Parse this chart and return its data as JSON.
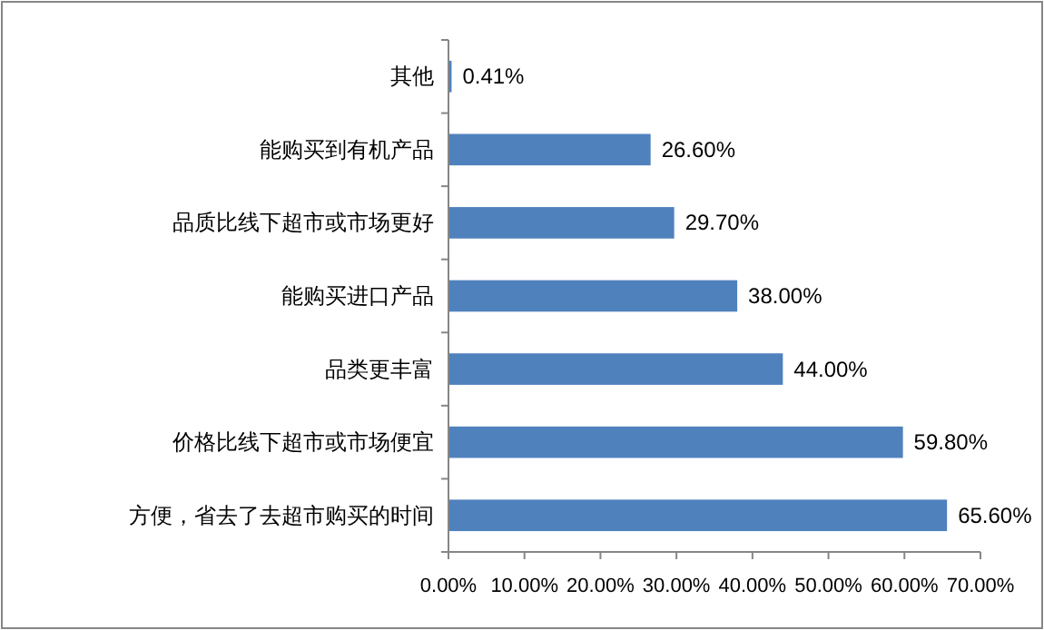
{
  "chart_data": {
    "type": "bar",
    "orientation": "horizontal",
    "categories": [
      "其他",
      "能购买到有机产品",
      "品质比线下超市或市场更好",
      "能购买进口产品",
      "品类更丰富",
      "价格比线下超市或市场便宜",
      "方便，省去了去超市购买的时间"
    ],
    "values": [
      0.41,
      26.6,
      29.7,
      38,
      44,
      59.8,
      65.6
    ],
    "value_labels": [
      "0.41%",
      "26.60%",
      "29.70%",
      "38.00%",
      "44.00%",
      "59.80%",
      "65.60%"
    ],
    "color": "#4f81bd",
    "xlim": [
      0,
      70
    ],
    "xticks": [
      {
        "value": 0,
        "label": "0.00%"
      },
      {
        "value": 10,
        "label": "10.00%"
      },
      {
        "value": 20,
        "label": "20.00%"
      },
      {
        "value": 30,
        "label": "30.00%"
      },
      {
        "value": 40,
        "label": "40.00%"
      },
      {
        "value": 50,
        "label": "50.00%"
      },
      {
        "value": 60,
        "label": "60.00%"
      },
      {
        "value": 70,
        "label": "70.00%"
      }
    ]
  }
}
